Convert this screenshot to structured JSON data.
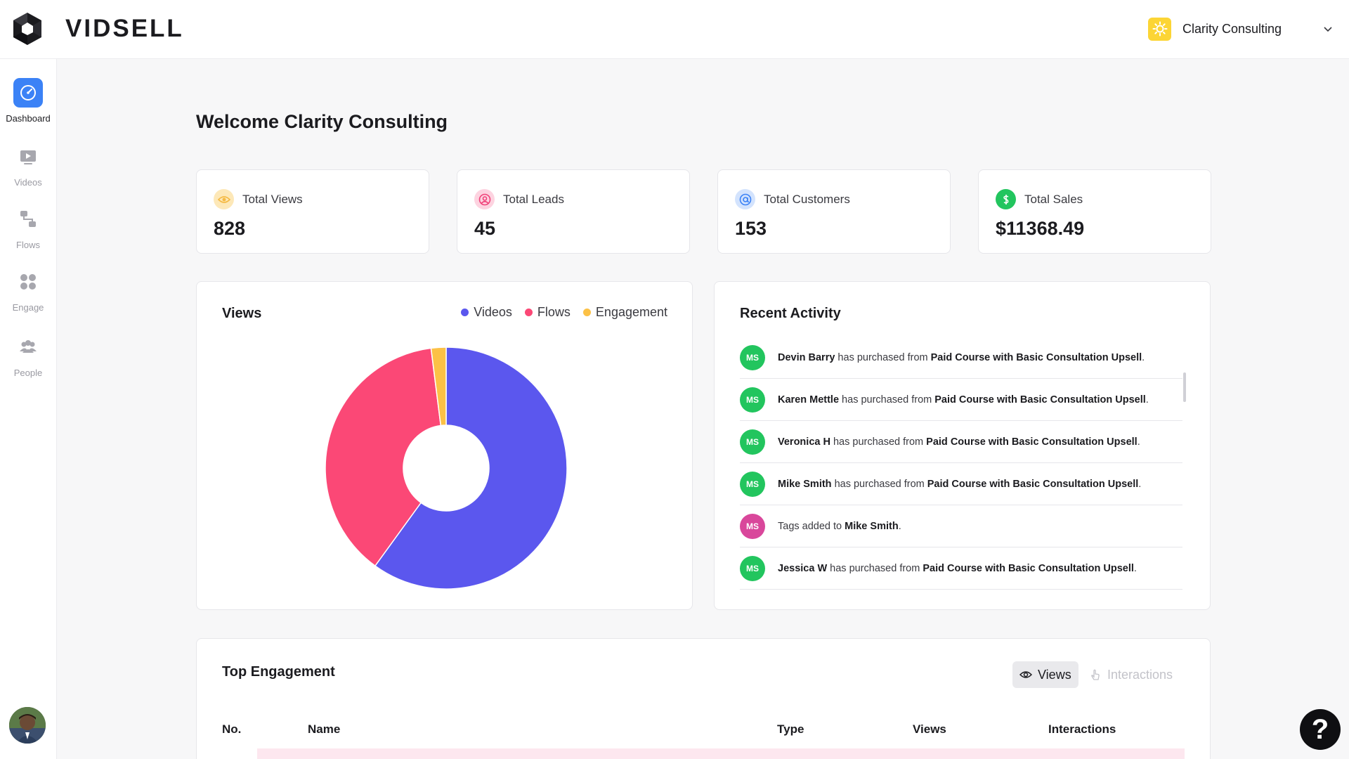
{
  "header": {
    "brand": "VIDSELL",
    "account_name": "Clarity Consulting",
    "account_icon": "sun-icon",
    "account_icon_color": "#fcd535"
  },
  "sidebar": {
    "items": [
      {
        "label": "Dashboard",
        "icon": "speedometer-icon",
        "active": true
      },
      {
        "label": "Videos",
        "icon": "play-video-icon",
        "active": false
      },
      {
        "label": "Flows",
        "icon": "flow-icon",
        "active": false
      },
      {
        "label": "Engage",
        "icon": "grid-dots-icon",
        "active": false
      },
      {
        "label": "People",
        "icon": "people-icon",
        "active": false
      }
    ],
    "active_color": "#3b82f6"
  },
  "page": {
    "title": "Welcome Clarity Consulting"
  },
  "stats": [
    {
      "label": "Total Views",
      "value": "828",
      "icon": "eye-icon",
      "color": "#f5b942"
    },
    {
      "label": "Total Leads",
      "value": "45",
      "icon": "user-circle-icon",
      "color": "#f0437a"
    },
    {
      "label": "Total Customers",
      "value": "153",
      "icon": "at-sign-icon",
      "color": "#3b82f6"
    },
    {
      "label": "Total Sales",
      "value": "$11368.49",
      "icon": "dollar-icon",
      "color": "#22c55e"
    }
  ],
  "views_panel": {
    "title": "Views",
    "legend": [
      {
        "label": "Videos",
        "color": "#5b57ee"
      },
      {
        "label": "Flows",
        "color": "#fb4876"
      },
      {
        "label": "Engagement",
        "color": "#fcc146"
      }
    ]
  },
  "chart_data": {
    "type": "pie",
    "title": "Views",
    "donut": true,
    "series": [
      {
        "name": "Videos",
        "value": 60
      },
      {
        "name": "Flows",
        "value": 38
      },
      {
        "name": "Engagement",
        "value": 2
      }
    ],
    "legend_position": "top-right"
  },
  "activity": {
    "title": "Recent Activity",
    "items": [
      {
        "initials": "MS",
        "color": "#22c55e",
        "name": "Devin Barry",
        "action": " has purchased from ",
        "target": "Paid Course with Basic Consultation Upsell",
        "end": "."
      },
      {
        "initials": "MS",
        "color": "#22c55e",
        "name": "Karen Mettle",
        "action": " has purchased from ",
        "target": "Paid Course with Basic Consultation Upsell",
        "end": "."
      },
      {
        "initials": "MS",
        "color": "#22c55e",
        "name": "Veronica H",
        "action": " has purchased from ",
        "target": "Paid Course with Basic Consultation Upsell",
        "end": "."
      },
      {
        "initials": "MS",
        "color": "#22c55e",
        "name": "Mike Smith",
        "action": " has purchased from ",
        "target": "Paid Course with Basic Consultation Upsell",
        "end": "."
      },
      {
        "initials": "MS",
        "color": "#d9479b",
        "name": "",
        "action": "Tags added to ",
        "target": "Mike Smith",
        "end": "."
      },
      {
        "initials": "MS",
        "color": "#22c55e",
        "name": "Jessica W",
        "action": " has purchased from ",
        "target": "Paid Course with Basic Consultation Upsell",
        "end": "."
      }
    ]
  },
  "engagement": {
    "title": "Top Engagement",
    "toggle_views": "Views",
    "toggle_interactions": "Interactions",
    "columns": [
      "No.",
      "Name",
      "Type",
      "Views",
      "Interactions"
    ]
  },
  "help": {
    "label": "?"
  }
}
